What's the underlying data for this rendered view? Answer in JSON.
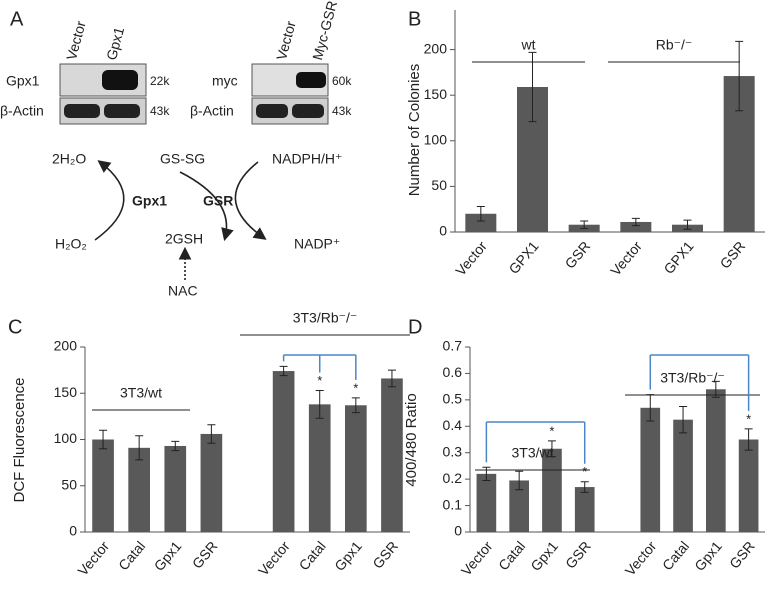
{
  "panel_a": {
    "label": "A",
    "blot1": {
      "columns": [
        "Vector",
        "Gpx1"
      ],
      "rows": [
        "Gpx1",
        "β-Actin"
      ],
      "sizes": [
        "22k",
        "43k"
      ]
    },
    "blot2": {
      "columns": [
        "Vector",
        "Myc-GSR"
      ],
      "rows": [
        "myc",
        "β-Actin"
      ],
      "sizes": [
        "60k",
        "43k"
      ]
    },
    "scheme": {
      "h2o": "2H₂O",
      "gssg": "GS-SG",
      "nadph": "NADPH/H⁺",
      "gpx1": "Gpx1",
      "gsr": "GSR",
      "h2o2": "H₂O₂",
      "gsh": "2GSH",
      "nadp": "NADP⁺",
      "nac": "NAC"
    }
  },
  "chart_data": [
    {
      "type": "bar",
      "label": "B",
      "ylabel": "Number of Colonies",
      "color": "#595959",
      "categories": [
        "Vector",
        "GPX1",
        "GSR",
        "Vector",
        "GPX1",
        "GSR"
      ],
      "values": [
        20,
        159,
        8,
        11,
        8,
        171
      ],
      "errors": [
        8,
        38,
        4,
        4,
        5,
        38
      ],
      "significance": [
        null,
        null,
        null,
        null,
        null,
        null
      ],
      "groups": [
        "wt",
        "Rb⁻/⁻"
      ],
      "ylim": [
        0,
        250
      ],
      "yticks": [
        0,
        50,
        100,
        150,
        200
      ]
    },
    {
      "type": "bar",
      "label": "C",
      "ylabel": "DCF Fluorescence",
      "color": "#595959",
      "categories": [
        "Vector",
        "Catal",
        "Gpx1",
        "GSR",
        null,
        "Vector",
        "Catal",
        "Gpx1",
        "GSR"
      ],
      "values": [
        100,
        91,
        93,
        106,
        null,
        174,
        138,
        137,
        166
      ],
      "errors": [
        10,
        13,
        5,
        10,
        null,
        5,
        15,
        8,
        9
      ],
      "significance": [
        null,
        null,
        null,
        null,
        null,
        null,
        "*",
        "*",
        null
      ],
      "groups": [
        "3T3/wt",
        "3T3/Rb⁻/⁻"
      ],
      "ylim": [
        0,
        200
      ],
      "yticks": [
        0,
        50,
        100,
        150,
        200
      ]
    },
    {
      "type": "bar",
      "label": "D",
      "ylabel": "400/480 Ratio",
      "color": "#595959",
      "categories": [
        "Vector",
        "Catal",
        "Gpx1",
        "GSR",
        null,
        "Vector",
        "Catal",
        "Gpx1",
        "GSR"
      ],
      "values": [
        0.22,
        0.195,
        0.315,
        0.17,
        null,
        0.47,
        0.425,
        0.54,
        0.35
      ],
      "errors": [
        0.025,
        0.035,
        0.03,
        0.02,
        null,
        0.05,
        0.05,
        0.03,
        0.04
      ],
      "significance": [
        null,
        null,
        "*",
        "*",
        null,
        null,
        null,
        null,
        "*"
      ],
      "groups": [
        "3T3/wt",
        "3T3/Rb⁻/⁻"
      ],
      "ylim": [
        0,
        0.7
      ],
      "yticks": [
        0,
        0.1,
        0.2,
        0.3,
        0.4,
        0.5,
        0.6,
        0.7
      ]
    }
  ]
}
